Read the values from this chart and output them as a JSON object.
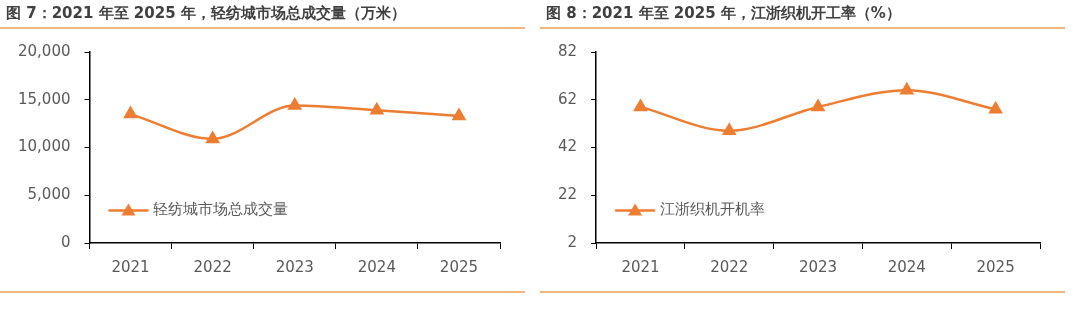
{
  "chart_data": [
    {
      "type": "line",
      "title": "图 7：2021 年至 2025 年，轻纺城市场总成交量（万米）",
      "categories": [
        "2021",
        "2022",
        "2023",
        "2024",
        "2025"
      ],
      "series": [
        {
          "name": "轻纺城市场总成交量",
          "color": "#ed7d31",
          "values": [
            13500,
            10900,
            14400,
            13900,
            13300
          ]
        }
      ],
      "ylim": [
        0,
        20000
      ],
      "yticks": [
        {
          "value": 0,
          "label": "0"
        },
        {
          "value": 5000,
          "label": "5,000"
        },
        {
          "value": 10000,
          "label": "10,000"
        },
        {
          "value": 15000,
          "label": "15,000"
        },
        {
          "value": 20000,
          "label": "20,000"
        }
      ],
      "grid": false,
      "legend": "bottom left",
      "marker": "triangle",
      "line_style": "solid"
    },
    {
      "type": "line",
      "title": "图 8：2021 年至 2025 年，江浙织机开工率（%）",
      "categories": [
        "2021",
        "2022",
        "2023",
        "2024",
        "2025"
      ],
      "series": [
        {
          "name": "江浙织机开机率",
          "color": "#ed7d31",
          "values": [
            59,
            49,
            59,
            66,
            58
          ]
        }
      ],
      "ylim": [
        2,
        82
      ],
      "yticks": [
        2,
        22,
        42,
        62,
        82
      ],
      "grid": false,
      "legend": "bottom left",
      "marker": "triangle",
      "line_style": "solid"
    }
  ]
}
